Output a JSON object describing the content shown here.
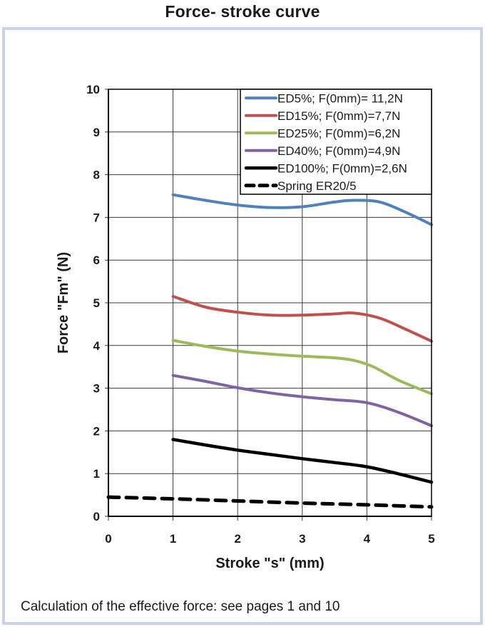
{
  "title": "Force- stroke curve",
  "caption": "Calculation of the effective force: see pages 1 and 10",
  "colors": {
    "frame_border": "#c8d2e8",
    "grid": "#3a3a3a",
    "axis": "#000000",
    "legend_border": "#000000",
    "text": "#1a1a1a"
  },
  "chart_data": {
    "type": "line",
    "title": "Force- stroke curve",
    "xlabel": "Stroke \"s\" (mm)",
    "ylabel": "Force \"Fm\" (N)",
    "xlim": [
      0,
      5
    ],
    "ylim": [
      0,
      10
    ],
    "x_ticks": [
      0,
      1,
      2,
      3,
      4,
      5
    ],
    "y_ticks": [
      0,
      1,
      2,
      3,
      4,
      5,
      6,
      7,
      8,
      9,
      10
    ],
    "grid": true,
    "legend_position": "top-right",
    "series": [
      {
        "name": "ED5%; F(0mm)= 11,2N",
        "color": "#4f81bd",
        "dash": null,
        "width": 4,
        "smooth": true,
        "points": [
          [
            1,
            7.53
          ],
          [
            1.5,
            7.4
          ],
          [
            2,
            7.29
          ],
          [
            2.5,
            7.23
          ],
          [
            3,
            7.25
          ],
          [
            3.5,
            7.36
          ],
          [
            3.8,
            7.4
          ],
          [
            4.2,
            7.36
          ],
          [
            4.6,
            7.12
          ],
          [
            5,
            6.83
          ]
        ]
      },
      {
        "name": "ED15%; F(0mm)=7,7N",
        "color": "#c0504d",
        "dash": null,
        "width": 4,
        "smooth": true,
        "points": [
          [
            1,
            5.15
          ],
          [
            1.5,
            4.9
          ],
          [
            2,
            4.78
          ],
          [
            2.5,
            4.71
          ],
          [
            3,
            4.71
          ],
          [
            3.5,
            4.74
          ],
          [
            3.8,
            4.76
          ],
          [
            4.2,
            4.64
          ],
          [
            4.6,
            4.38
          ],
          [
            5,
            4.1
          ]
        ]
      },
      {
        "name": "ED25%; F(0mm)=6,2N",
        "color": "#9bbb59",
        "dash": null,
        "width": 4,
        "smooth": true,
        "points": [
          [
            1,
            4.12
          ],
          [
            1.5,
            3.98
          ],
          [
            2,
            3.87
          ],
          [
            2.5,
            3.8
          ],
          [
            3,
            3.75
          ],
          [
            3.5,
            3.71
          ],
          [
            3.8,
            3.65
          ],
          [
            4.1,
            3.5
          ],
          [
            4.5,
            3.18
          ],
          [
            5,
            2.87
          ]
        ]
      },
      {
        "name": "ED40%; F(0mm)=4,9N",
        "color": "#8064a2",
        "dash": null,
        "width": 4,
        "smooth": true,
        "points": [
          [
            1,
            3.3
          ],
          [
            1.5,
            3.16
          ],
          [
            2,
            3.01
          ],
          [
            2.5,
            2.89
          ],
          [
            3,
            2.8
          ],
          [
            3.5,
            2.73
          ],
          [
            4,
            2.66
          ],
          [
            4.5,
            2.43
          ],
          [
            5,
            2.12
          ]
        ]
      },
      {
        "name": "ED100%; F(0mm)=2,6N",
        "color": "#000000",
        "dash": null,
        "width": 4.5,
        "smooth": true,
        "points": [
          [
            1,
            1.8
          ],
          [
            1.5,
            1.67
          ],
          [
            2,
            1.55
          ],
          [
            2.5,
            1.45
          ],
          [
            3,
            1.35
          ],
          [
            3.5,
            1.26
          ],
          [
            4,
            1.16
          ],
          [
            4.5,
            0.99
          ],
          [
            5,
            0.8
          ]
        ]
      },
      {
        "name": "Spring ER20/5",
        "color": "#000000",
        "dash": "15 10",
        "width": 5,
        "smooth": false,
        "points": [
          [
            0,
            0.45
          ],
          [
            1,
            0.41
          ],
          [
            2,
            0.36
          ],
          [
            3,
            0.31
          ],
          [
            4,
            0.27
          ],
          [
            5,
            0.22
          ]
        ]
      }
    ]
  }
}
